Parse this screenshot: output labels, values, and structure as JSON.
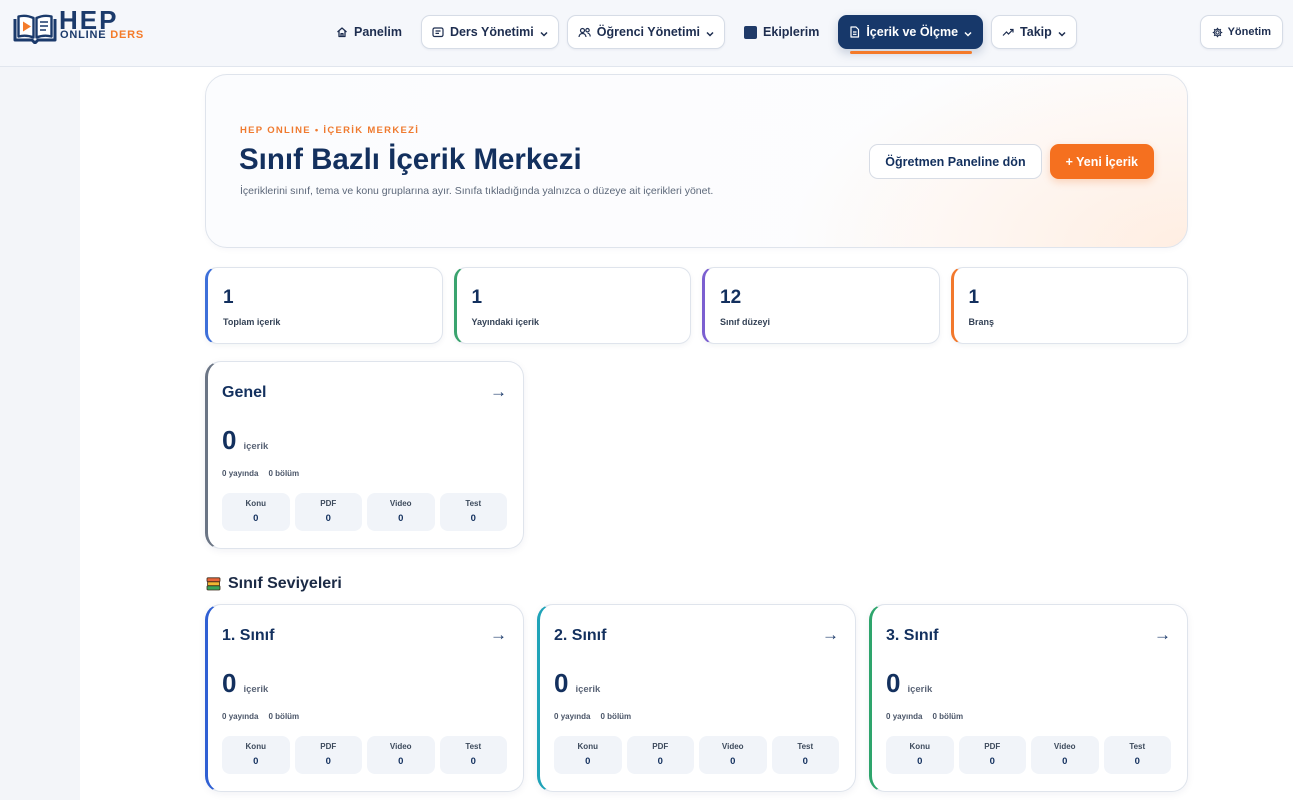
{
  "brand": {
    "name": "HEP",
    "line_1": "ONLINE",
    "line_2": "DERS"
  },
  "nav": {
    "items": [
      {
        "label": "Panelim",
        "icon": "home-icon"
      },
      {
        "label": "Ders Yönetimi",
        "icon": "card-text-icon",
        "has_dropdown": true
      },
      {
        "label": "Öğrenci Yönetimi",
        "icon": "users-icon",
        "has_dropdown": true
      },
      {
        "label": "Ekiplerim",
        "icon": "square-icon"
      },
      {
        "label": "İçerik ve Ölçme",
        "icon": "document-icon",
        "has_dropdown": true,
        "active": true
      },
      {
        "label": "Takip",
        "icon": "trending-up-icon",
        "has_dropdown": true
      }
    ],
    "admin": {
      "label": "Yönetim",
      "icon": "gear-icon"
    }
  },
  "hero": {
    "eyebrow": "HEP ONLINE • İÇERİK MERKEZİ",
    "title": "Sınıf Bazlı İçerik Merkezi",
    "subtitle": "İçeriklerini sınıf, tema ve konu gruplarına ayır. Sınıfa tıkladığında yalnızca o düzeye ait içerikleri yönet.",
    "back_button": "Öğretmen Paneline dön",
    "new_button": "+ Yeni İçerik"
  },
  "stats": [
    {
      "value": 1,
      "label": "Toplam içerik",
      "color": "#3d6fd9"
    },
    {
      "value": 1,
      "label": "Yayındaki içerik",
      "color": "#3aa36e"
    },
    {
      "value": 12,
      "label": "Sınıf düzeyi",
      "color": "#7b5fd0"
    },
    {
      "value": 1,
      "label": "Branş",
      "color": "#f2782c"
    }
  ],
  "card_labels": {
    "unit": "içerik",
    "published": "yayında",
    "sections": "bölüm",
    "open_arrow": "→"
  },
  "general_group": {
    "title": "Genel",
    "count": 0,
    "published": 0,
    "sections": 0,
    "color": "#6b7585",
    "breakdown": [
      {
        "label": "Konu",
        "value": 0
      },
      {
        "label": "PDF",
        "value": 0
      },
      {
        "label": "Video",
        "value": 0
      },
      {
        "label": "Test",
        "value": 0
      }
    ]
  },
  "grade_section": {
    "title": "Sınıf Seviyeleri",
    "icon": "books-icon"
  },
  "grades": [
    {
      "title": "1. Sınıf",
      "count": 0,
      "published": 0,
      "sections": 0,
      "color": "#2f5fd3",
      "breakdown": [
        {
          "label": "Konu",
          "value": 0
        },
        {
          "label": "PDF",
          "value": 0
        },
        {
          "label": "Video",
          "value": 0
        },
        {
          "label": "Test",
          "value": 0
        }
      ]
    },
    {
      "title": "2. Sınıf",
      "count": 0,
      "published": 0,
      "sections": 0,
      "color": "#1fa3b8",
      "breakdown": [
        {
          "label": "Konu",
          "value": 0
        },
        {
          "label": "PDF",
          "value": 0
        },
        {
          "label": "Video",
          "value": 0
        },
        {
          "label": "Test",
          "value": 0
        }
      ]
    },
    {
      "title": "3. Sınıf",
      "count": 0,
      "published": 0,
      "sections": 0,
      "color": "#2ea56c",
      "breakdown": [
        {
          "label": "Konu",
          "value": 0
        },
        {
          "label": "PDF",
          "value": 0
        },
        {
          "label": "Video",
          "value": 0
        },
        {
          "label": "Test",
          "value": 0
        }
      ]
    }
  ],
  "colors": {
    "navy": "#17386a",
    "orange": "#f47b2a",
    "sidebar": "#f3f5f9",
    "header": "#f5f7fb"
  }
}
